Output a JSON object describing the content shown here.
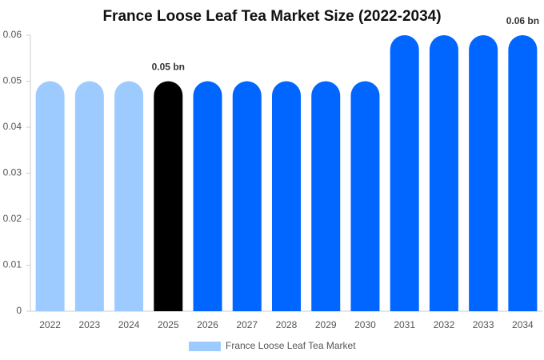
{
  "chart_data": {
    "type": "bar",
    "title": "France Loose Leaf Tea Market Size (2022-2034)",
    "categories": [
      "2022",
      "2023",
      "2024",
      "2025",
      "2026",
      "2027",
      "2028",
      "2029",
      "2030",
      "2031",
      "2032",
      "2033",
      "2034"
    ],
    "series": [
      {
        "name": "France Loose Leaf Tea Market",
        "color": "#9ecbff",
        "values": [
          0.05,
          0.05,
          0.05,
          0.05,
          0.05,
          0.05,
          0.05,
          0.05,
          0.05,
          0.06,
          0.06,
          0.06,
          0.06
        ],
        "colors": [
          "#9ecbff",
          "#9ecbff",
          "#9ecbff",
          "#000000",
          "#0066ff",
          "#0066ff",
          "#0066ff",
          "#0066ff",
          "#0066ff",
          "#0066ff",
          "#0066ff",
          "#0066ff",
          "#0066ff"
        ],
        "value_labels": [
          null,
          null,
          null,
          "0.05 bn",
          null,
          null,
          null,
          null,
          null,
          null,
          null,
          null,
          "0.06 bn"
        ]
      }
    ],
    "ylim": [
      0,
      0.06
    ],
    "yticks": [
      0,
      0.01,
      0.02,
      0.03,
      0.04,
      0.05,
      0.06
    ],
    "grid": false
  }
}
